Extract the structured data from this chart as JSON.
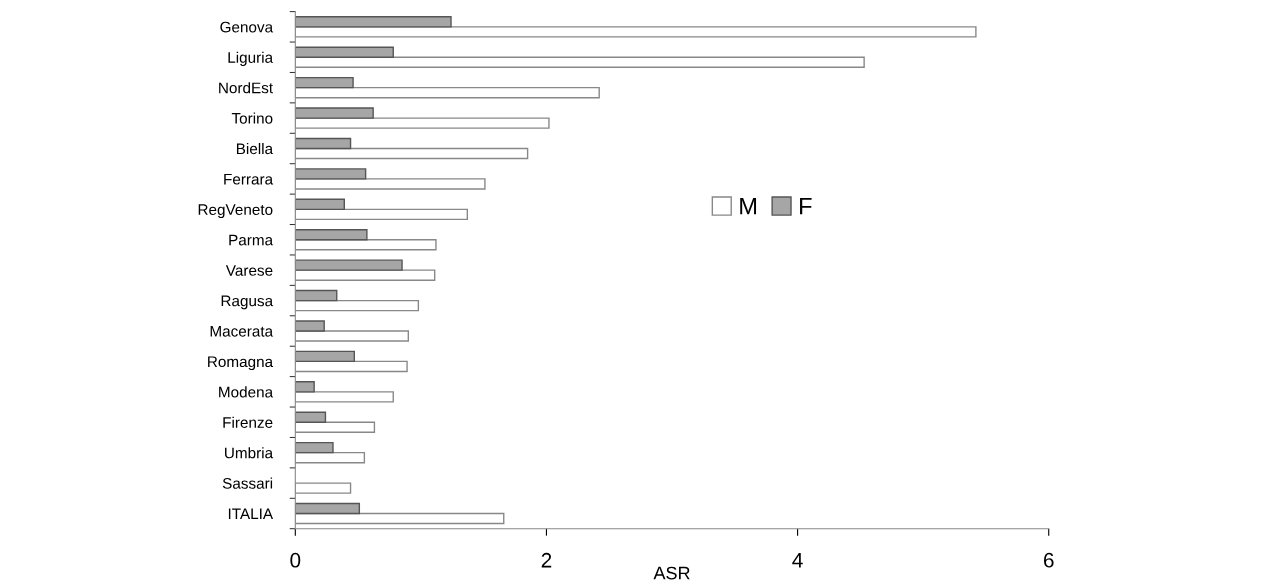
{
  "chart_data": {
    "type": "bar",
    "orientation": "horizontal",
    "xlabel": "ASR",
    "categories": [
      "Genova",
      "Liguria",
      "NordEst",
      "Torino",
      "Biella",
      "Ferrara",
      "RegVeneto",
      "Parma",
      "Varese",
      "Ragusa",
      "Macerata",
      "Romagna",
      "Modena",
      "Firenze",
      "Umbria",
      "Sassari",
      "ITALIA"
    ],
    "series": [
      {
        "name": "M",
        "color": "#ffffff",
        "values": [
          5.42,
          4.53,
          2.42,
          2.02,
          1.85,
          1.51,
          1.37,
          1.12,
          1.11,
          0.98,
          0.9,
          0.89,
          0.78,
          0.63,
          0.55,
          0.44,
          1.66
        ]
      },
      {
        "name": "F",
        "color": "#a6a6a6",
        "values": [
          1.24,
          0.78,
          0.46,
          0.62,
          0.44,
          0.56,
          0.39,
          0.57,
          0.85,
          0.33,
          0.23,
          0.47,
          0.15,
          0.24,
          0.3,
          null,
          0.51
        ]
      }
    ],
    "xlim": [
      0,
      6
    ],
    "xticks": [
      0,
      2,
      4,
      6
    ],
    "grid": false,
    "legend": "center"
  }
}
